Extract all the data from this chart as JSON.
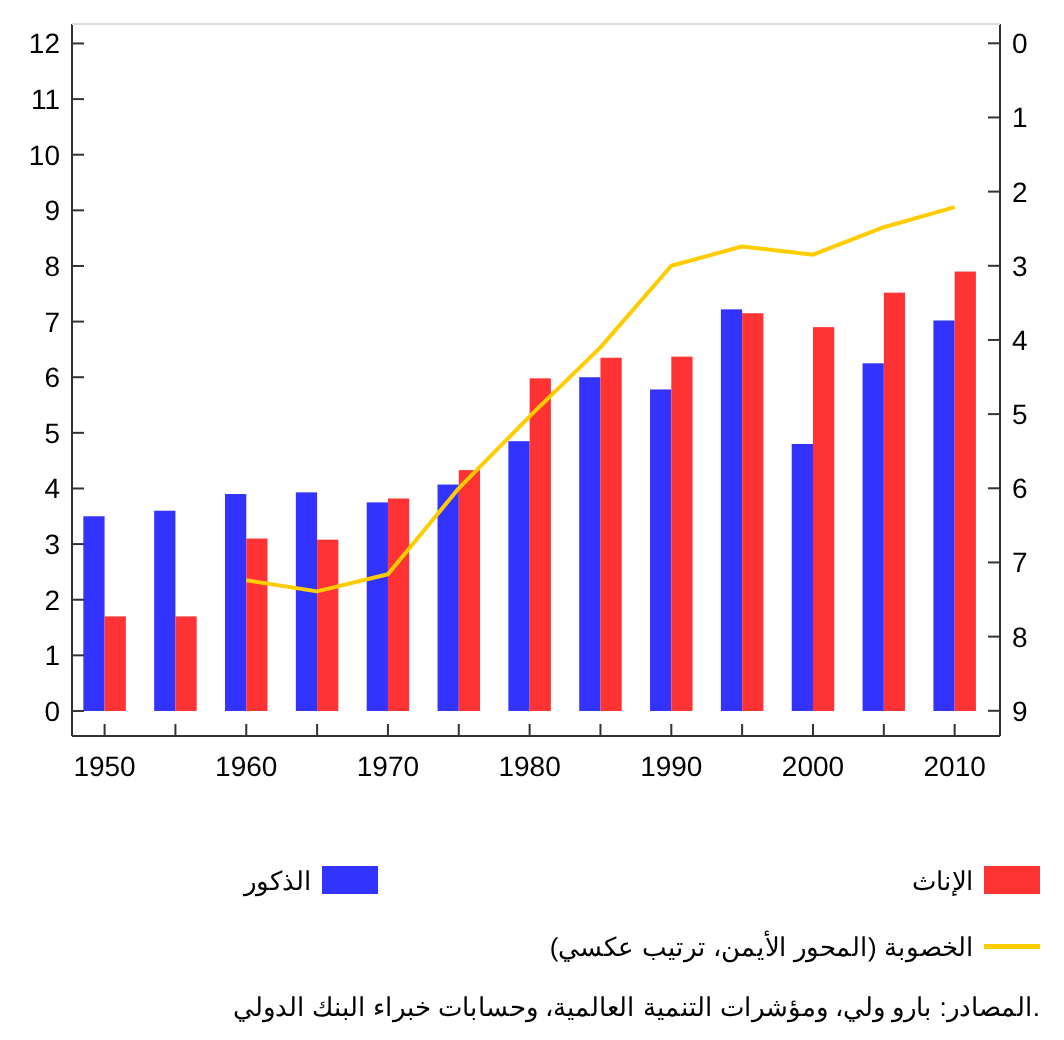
{
  "chart_data": {
    "type": "bar",
    "x": [
      1950,
      1955,
      1960,
      1965,
      1970,
      1975,
      1980,
      1985,
      1990,
      1995,
      2000,
      2005,
      2010
    ],
    "xlim": [
      1947.7,
      2013.2
    ],
    "xticks": [
      1950,
      {
        "value": 1955,
        "label": null
      },
      1960,
      {
        "value": 1965,
        "label": null
      },
      1970,
      {
        "value": 1975,
        "label": null
      },
      1980,
      {
        "value": 1985,
        "label": null
      },
      1990,
      {
        "value": 1995,
        "label": null
      },
      2000,
      {
        "value": 2005,
        "label": null
      },
      2010
    ],
    "ylim": [
      -0.45,
      12.35
    ],
    "yticks": [
      0,
      1,
      2,
      3,
      4,
      5,
      6,
      7,
      8,
      9,
      10,
      11,
      12
    ],
    "y2lim": [
      9.34,
      -0.26
    ],
    "y2ticks": [
      0,
      1,
      2,
      3,
      4,
      5,
      6,
      7,
      8,
      9
    ],
    "series": [
      {
        "name": "الذكور",
        "color": "#3333ff",
        "values": [
          3.5,
          3.6,
          3.9,
          3.93,
          3.75,
          4.07,
          4.85,
          6.0,
          5.78,
          7.22,
          4.8,
          6.25,
          7.02
        ]
      },
      {
        "name": "الإناث",
        "color": "#ff3333",
        "values": [
          1.7,
          1.7,
          3.1,
          3.08,
          3.82,
          4.33,
          5.98,
          6.35,
          6.37,
          7.15,
          6.9,
          7.52,
          7.9
        ]
      },
      {
        "name": "الخصوبة (المحور الأيمن، ترتيب عكسي)",
        "type": "line",
        "axis": "y2",
        "color": "#ffcc00",
        "x": [
          1960,
          1965,
          1970,
          1975,
          1980,
          1985,
          1990,
          1995,
          2000,
          2005,
          2010
        ],
        "values": [
          7.24,
          7.39,
          7.16,
          6.0,
          5.03,
          4.1,
          3.0,
          2.74,
          2.85,
          2.48,
          2.21
        ]
      }
    ],
    "legend": "bottom",
    "grid": false,
    "annotations": [
      "المصادر: بارو ولي، ومؤشرات التنمية العالمية، وحسابات خبراء البنك الدولي."
    ]
  }
}
